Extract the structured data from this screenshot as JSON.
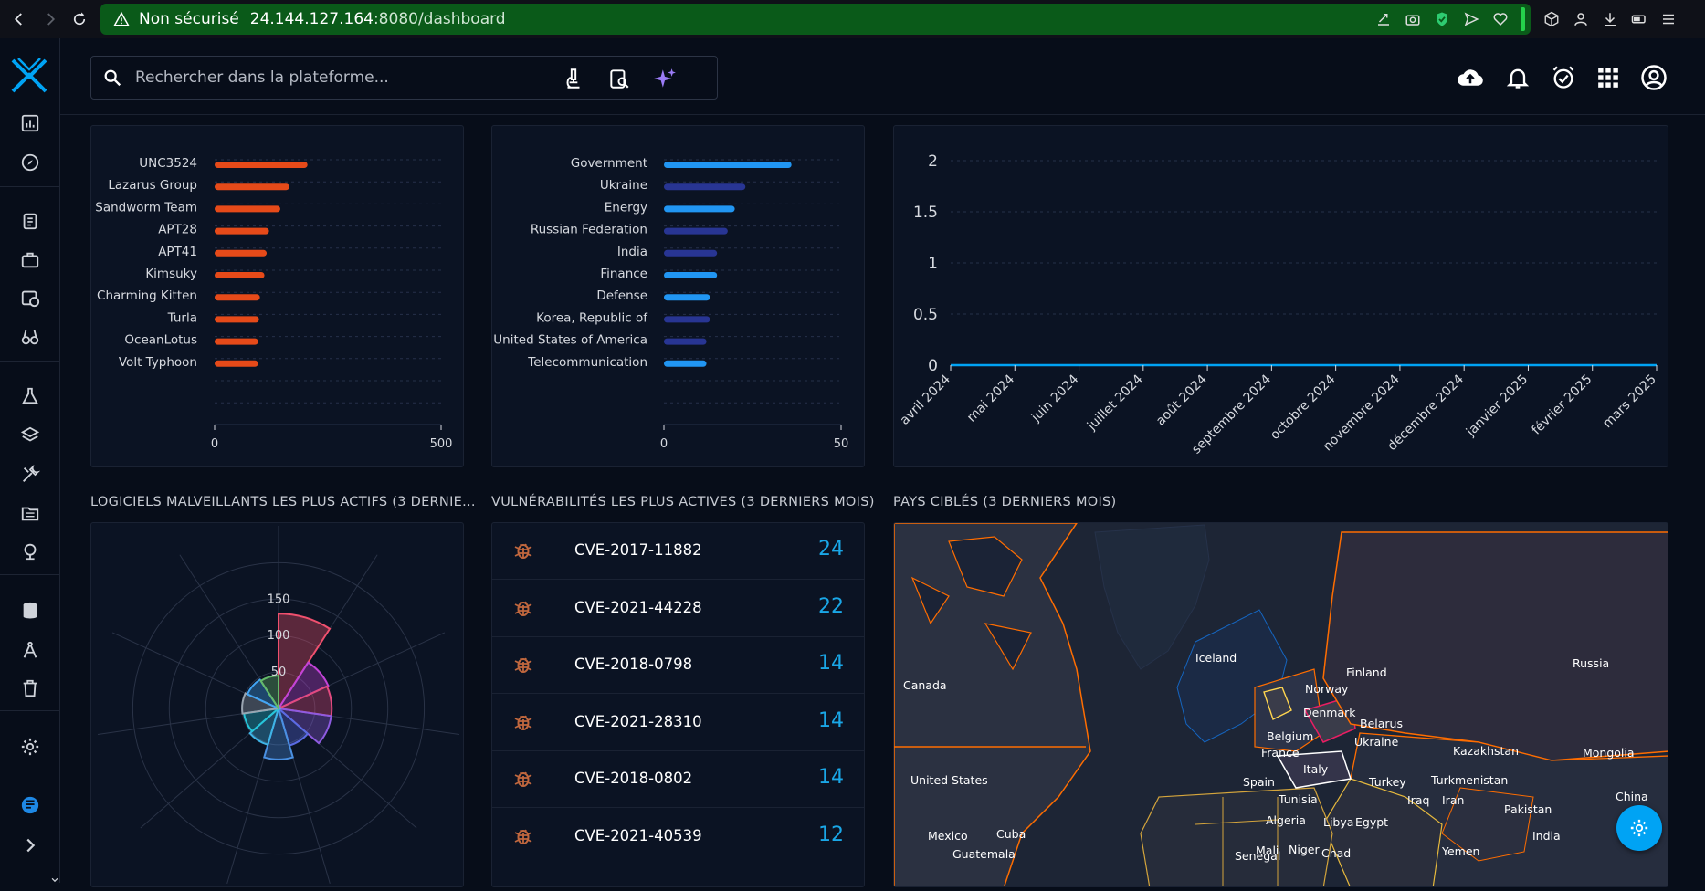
{
  "browser": {
    "security": "Non sécurisé",
    "host": "24.144.127.164",
    "path": ":8080/dashboard"
  },
  "search": {
    "placeholder": "Rechercher dans la plateforme..."
  },
  "colors": {
    "accent": "#00a3f4",
    "intrusion_bars": "#e64a19",
    "sector_bar_light": "#2196f3",
    "sector_bar_dark": "#283593",
    "vuln_count": "#1aa7e7",
    "map_border": "#ff6d00"
  },
  "intrusion_chart": {
    "categories": [
      "UNC3524",
      "Lazarus Group",
      "Sandworm Team",
      "APT28",
      "APT41",
      "Kimsuky",
      "Charming Kitten",
      "Turla",
      "OceanLotus",
      "Volt Typhoon"
    ],
    "values": [
      205,
      165,
      145,
      120,
      115,
      110,
      100,
      98,
      96,
      96
    ],
    "ticks": [
      "0",
      "500"
    ],
    "xlim": [
      0,
      500
    ]
  },
  "sector_chart": {
    "categories": [
      "Government",
      "Ukraine",
      "Energy",
      "Russian Federation",
      "India",
      "Finance",
      "Defense",
      "Korea, Republic of",
      "United States of America",
      "Telecommunication"
    ],
    "values": [
      36,
      23,
      20,
      18,
      15,
      15,
      13,
      13,
      12,
      12
    ],
    "bar_tone": [
      "light",
      "dark",
      "light",
      "dark",
      "dark",
      "light",
      "light",
      "dark",
      "dark",
      "light"
    ],
    "ticks": [
      "0",
      "50"
    ],
    "xlim": [
      0,
      50
    ]
  },
  "chart_data": {
    "type": "line",
    "x": [
      "avril 2024",
      "mai 2024",
      "juin 2024",
      "juillet 2024",
      "août 2024",
      "septembre 2024",
      "octobre 2024",
      "novembre 2024",
      "décembre 2024",
      "janvier 2025",
      "février 2025",
      "mars 2025"
    ],
    "values": [
      0,
      0,
      0,
      0,
      0,
      0,
      0,
      0,
      0,
      0,
      0,
      0
    ],
    "yticks": [
      "2",
      "1.5",
      "1",
      "0.5",
      "0"
    ],
    "ylim": [
      0,
      2
    ],
    "grid": true
  },
  "malware_section": {
    "title": "LOGICIELS MALVEILLANTS LES PLUS ACTIFS (3 DERNIE...",
    "radial_ticks": [
      "150",
      "100",
      "50"
    ],
    "slices": [
      {
        "value": 130,
        "color": "#f0506e"
      },
      {
        "value": 75,
        "color": "#c243d8"
      },
      {
        "value": 73,
        "color": "#e24a7f"
      },
      {
        "value": 73,
        "color": "#8e5be0"
      },
      {
        "value": 53,
        "color": "#5a6be2"
      },
      {
        "value": 70,
        "color": "#4a90e2"
      },
      {
        "value": 52,
        "color": "#3fb4e6"
      },
      {
        "value": 48,
        "color": "#26c6da"
      },
      {
        "value": 50,
        "color": "#9aa5b1"
      },
      {
        "value": 47,
        "color": "#42a5f5"
      },
      {
        "value": 45,
        "color": "#66bb6a"
      }
    ]
  },
  "vuln_section": {
    "title": "VULNÉRABILITÉS LES PLUS ACTIVES (3 DERNIERS MOIS)",
    "rows": [
      {
        "cve": "CVE-2017-11882",
        "count": "24"
      },
      {
        "cve": "CVE-2021-44228",
        "count": "22"
      },
      {
        "cve": "CVE-2018-0798",
        "count": "14"
      },
      {
        "cve": "CVE-2021-28310",
        "count": "14"
      },
      {
        "cve": "CVE-2018-0802",
        "count": "14"
      },
      {
        "cve": "CVE-2021-40539",
        "count": "12"
      }
    ]
  },
  "countries_section": {
    "title": "PAYS CIBLÉS (3 DERNIERS MOIS)",
    "labels": [
      "Iceland",
      "Finland",
      "Russia",
      "Canada",
      "Norway",
      "Denmark",
      "Belarus",
      "Belgium",
      "Ukraine",
      "France",
      "Kazakhstan",
      "Mongolia",
      "Italy",
      "United States",
      "Spain",
      "Turkey",
      "Turkmenistan",
      "Tunisia",
      "Iraq",
      "Iran",
      "China",
      "Algeria",
      "Libya",
      "Egypt",
      "Pakistan",
      "Mexico",
      "Cuba",
      "India",
      "Guatemala",
      "Mali",
      "Niger",
      "Chad",
      "Yemen",
      "Senegal"
    ]
  }
}
